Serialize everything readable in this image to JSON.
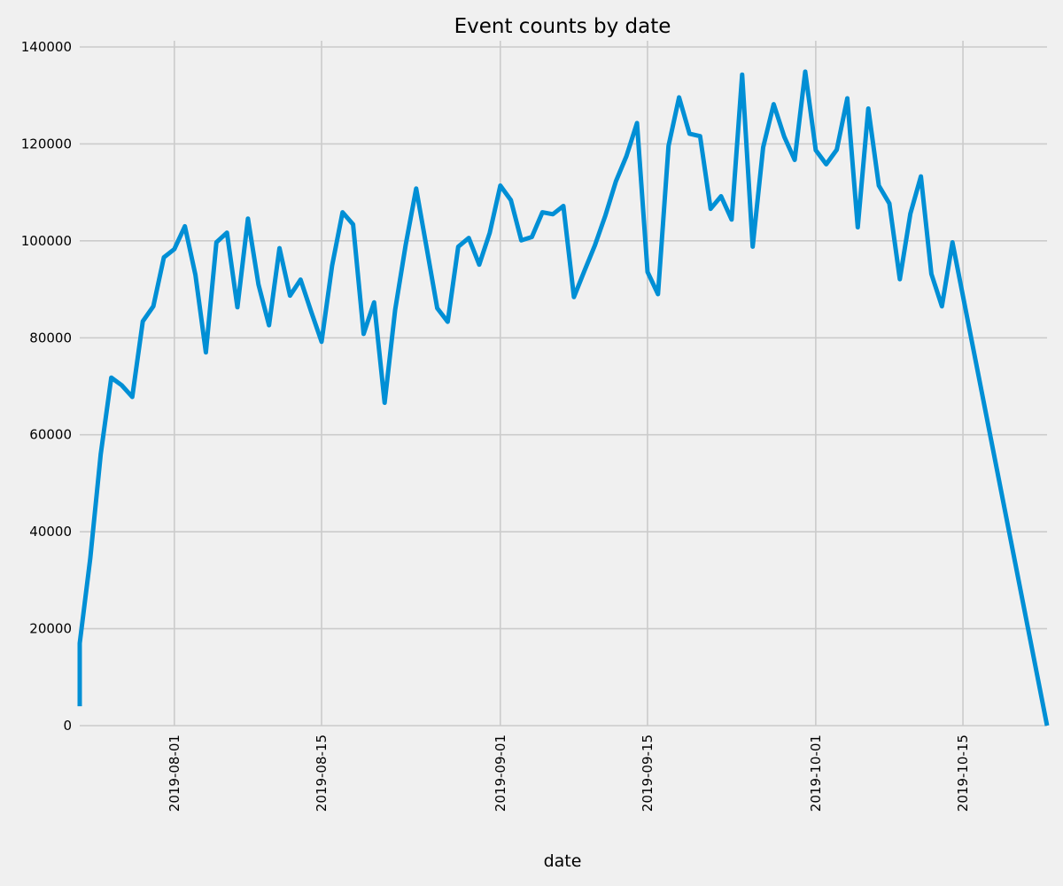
{
  "chart_data": {
    "type": "line",
    "title": "Event counts by date",
    "xlabel": "date",
    "ylabel": "",
    "xlim": [
      "2019-07-23",
      "2019-10-23"
    ],
    "ylim": [
      0,
      140000
    ],
    "grid": true,
    "legend": "none",
    "color": "#008fd5",
    "x_ticks": [
      "2019-08-01",
      "2019-08-15",
      "2019-09-01",
      "2019-09-15",
      "2019-10-01",
      "2019-10-15"
    ],
    "y_ticks": [
      0,
      20000,
      40000,
      60000,
      80000,
      100000,
      120000,
      140000
    ],
    "series": [
      {
        "x": [
          "2019-07-23",
          "2019-07-23",
          "2019-07-24",
          "2019-07-25",
          "2019-07-26",
          "2019-07-27",
          "2019-07-28",
          "2019-07-29",
          "2019-07-30",
          "2019-07-31",
          "2019-08-01",
          "2019-08-02",
          "2019-08-03",
          "2019-08-04",
          "2019-08-05",
          "2019-08-06",
          "2019-08-07",
          "2019-08-08",
          "2019-08-09",
          "2019-08-10",
          "2019-08-11",
          "2019-08-12",
          "2019-08-13",
          "2019-08-14",
          "2019-08-15",
          "2019-08-16",
          "2019-08-17",
          "2019-08-18",
          "2019-08-19",
          "2019-08-20",
          "2019-08-21",
          "2019-08-22",
          "2019-08-23",
          "2019-08-24",
          "2019-08-25",
          "2019-08-26",
          "2019-08-27",
          "2019-08-28",
          "2019-08-29",
          "2019-08-30",
          "2019-08-31",
          "2019-09-01",
          "2019-09-02",
          "2019-09-03",
          "2019-09-04",
          "2019-09-05",
          "2019-09-06",
          "2019-09-07",
          "2019-09-08",
          "2019-09-09",
          "2019-09-10",
          "2019-09-11",
          "2019-09-12",
          "2019-09-13",
          "2019-09-14",
          "2019-09-15",
          "2019-09-16",
          "2019-09-17",
          "2019-09-18",
          "2019-09-19",
          "2019-09-20",
          "2019-09-21",
          "2019-09-22",
          "2019-09-23",
          "2019-09-24",
          "2019-09-25",
          "2019-09-26",
          "2019-09-27",
          "2019-09-28",
          "2019-09-29",
          "2019-09-30",
          "2019-10-01",
          "2019-10-02",
          "2019-10-03",
          "2019-10-04",
          "2019-10-05",
          "2019-10-06",
          "2019-10-07",
          "2019-10-08",
          "2019-10-09",
          "2019-10-10",
          "2019-10-11",
          "2019-10-12",
          "2019-10-13",
          "2019-10-14",
          "2019-10-23"
        ],
        "y": [
          4000,
          17000,
          34500,
          56000,
          71800,
          70200,
          67800,
          83400,
          86500,
          96600,
          98300,
          103000,
          93000,
          77000,
          99700,
          101700,
          86300,
          104600,
          91000,
          82600,
          98500,
          88700,
          92000,
          85500,
          79200,
          94900,
          105900,
          103400,
          80800,
          87300,
          66600,
          85800,
          99200,
          110800,
          98500,
          86100,
          83300,
          98800,
          100600,
          95100,
          101700,
          111400,
          108400,
          100100,
          100800,
          105900,
          105500,
          107200,
          88400,
          93800,
          99100,
          105300,
          112300,
          117500,
          124300,
          93600,
          89000,
          119600,
          129600,
          122100,
          121600,
          106600,
          109200,
          104400,
          134300,
          98800,
          119300,
          128200,
          121500,
          116700,
          134900,
          118700,
          115800,
          118800,
          129400,
          102800,
          127300,
          111400,
          107700,
          92100,
          105600,
          113300,
          93200,
          86500,
          99700,
          0
        ]
      }
    ]
  }
}
